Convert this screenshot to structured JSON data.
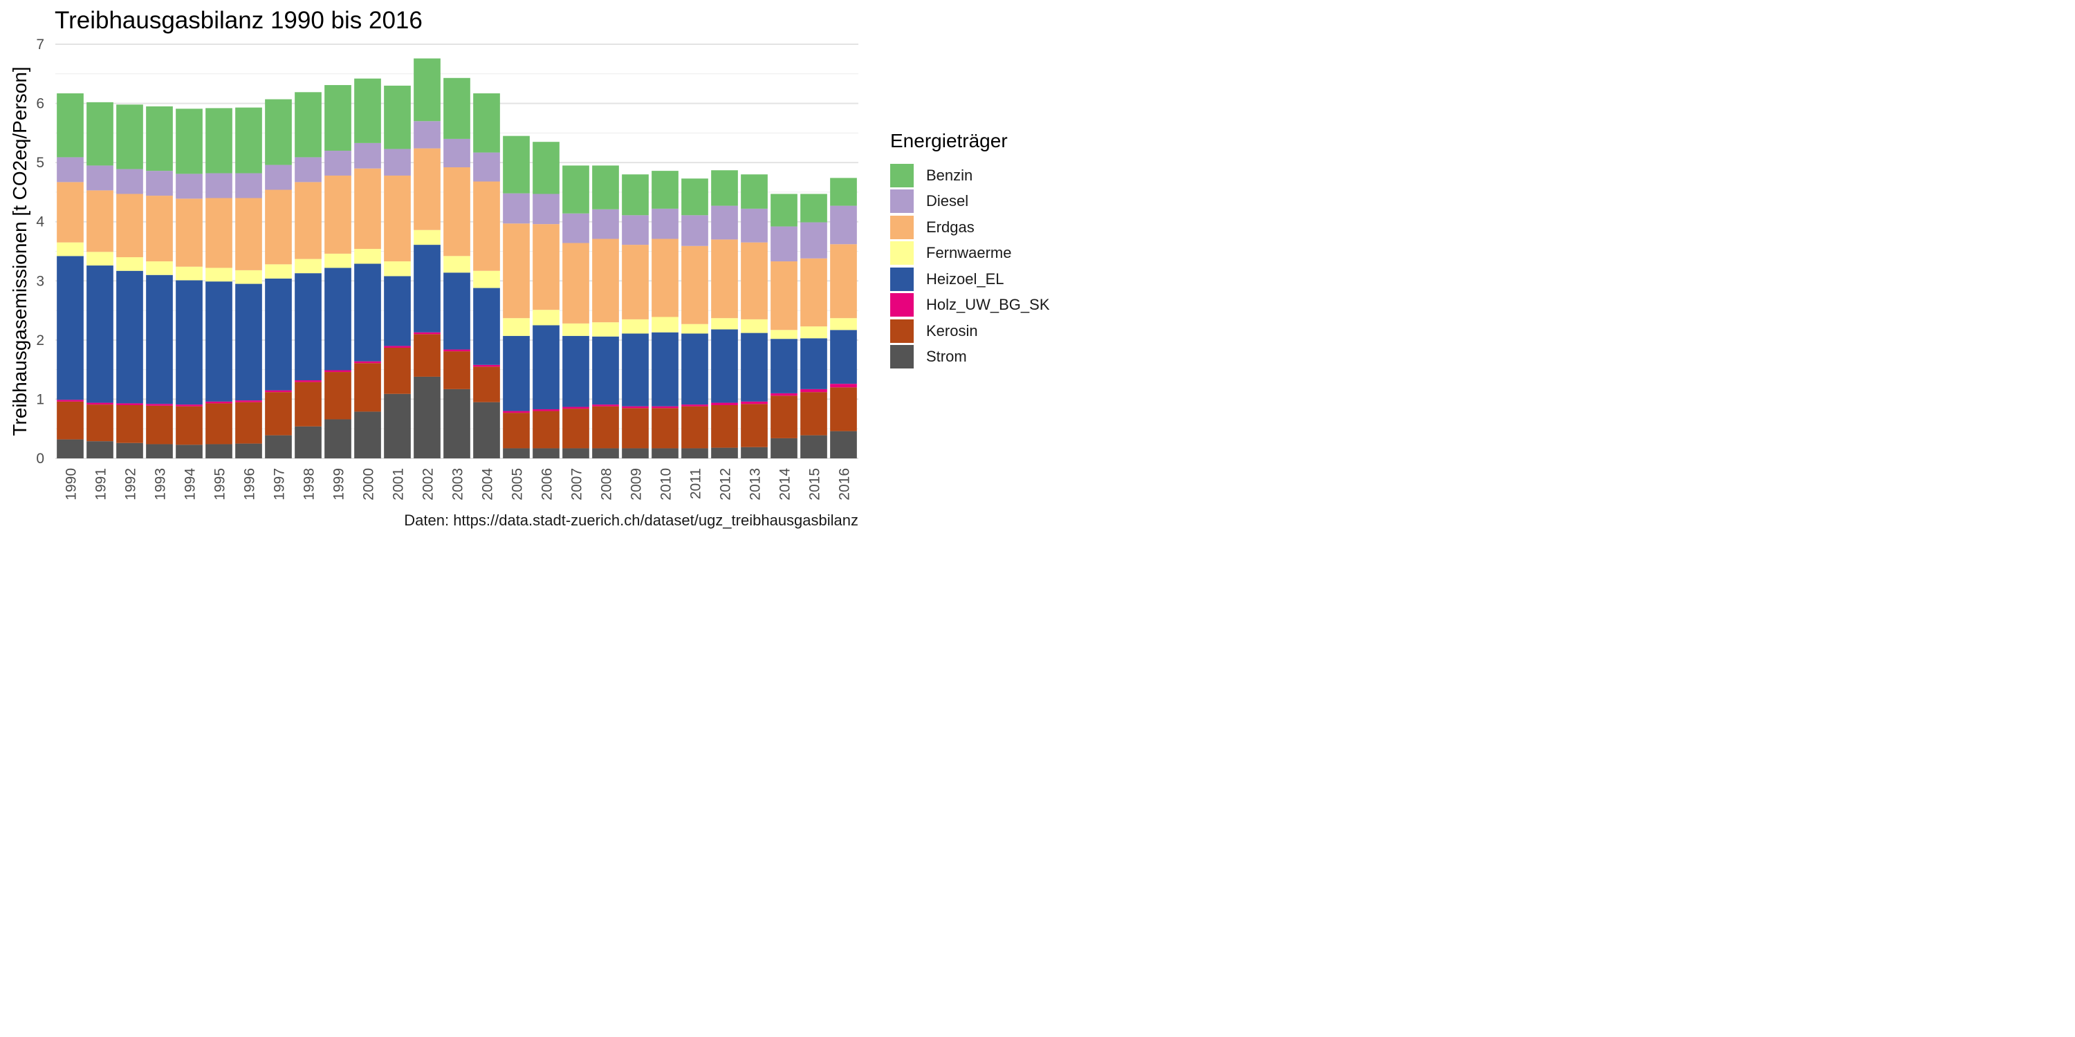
{
  "chart_data": {
    "type": "bar",
    "stacked": true,
    "title": "Treibhausgasbilanz 1990 bis 2016",
    "ylabel": "Treibhausgasemissionen [t CO2eq/Person]",
    "xlabel": "",
    "caption": "Daten: https://data.stadt-zuerich.ch/dataset/ugz_treibhausgasbilanz",
    "legend_title": "Energieträger",
    "legend_position": "right",
    "ylim": [
      0,
      7
    ],
    "yticks": [
      0,
      1,
      2,
      3,
      4,
      5,
      6,
      7
    ],
    "grid": true,
    "categories": [
      "1990",
      "1991",
      "1992",
      "1993",
      "1994",
      "1995",
      "1996",
      "1997",
      "1998",
      "1999",
      "2000",
      "2001",
      "2002",
      "2003",
      "2004",
      "2005",
      "2006",
      "2007",
      "2008",
      "2009",
      "2010",
      "2011",
      "2012",
      "2013",
      "2014",
      "2015",
      "2016"
    ],
    "series": [
      {
        "name": "Strom",
        "color": "#545454",
        "values": [
          0.32,
          0.29,
          0.26,
          0.24,
          0.23,
          0.24,
          0.25,
          0.39,
          0.54,
          0.66,
          0.79,
          1.09,
          1.38,
          1.17,
          0.95,
          0.17,
          0.17,
          0.17,
          0.17,
          0.17,
          0.17,
          0.17,
          0.18,
          0.19,
          0.34,
          0.39,
          0.46
        ]
      },
      {
        "name": "Kerosin",
        "color": "#b34715",
        "values": [
          0.64,
          0.62,
          0.64,
          0.65,
          0.65,
          0.69,
          0.7,
          0.73,
          0.75,
          0.8,
          0.82,
          0.78,
          0.72,
          0.64,
          0.6,
          0.6,
          0.63,
          0.67,
          0.71,
          0.68,
          0.68,
          0.71,
          0.72,
          0.73,
          0.72,
          0.73,
          0.74
        ]
      },
      {
        "name": "Holz_UW_BG_SK",
        "color": "#e7037d",
        "values": [
          0.03,
          0.03,
          0.03,
          0.03,
          0.03,
          0.03,
          0.03,
          0.03,
          0.03,
          0.03,
          0.03,
          0.03,
          0.03,
          0.03,
          0.03,
          0.03,
          0.03,
          0.03,
          0.03,
          0.03,
          0.03,
          0.03,
          0.04,
          0.04,
          0.04,
          0.05,
          0.06
        ]
      },
      {
        "name": "Heizoel_EL",
        "color": "#2c57a0",
        "values": [
          2.43,
          2.32,
          2.24,
          2.18,
          2.1,
          2.03,
          1.97,
          1.89,
          1.81,
          1.73,
          1.65,
          1.18,
          1.48,
          1.3,
          1.3,
          1.27,
          1.42,
          1.2,
          1.15,
          1.23,
          1.25,
          1.2,
          1.24,
          1.16,
          0.92,
          0.86,
          0.91
        ]
      },
      {
        "name": "Fernwaerme",
        "color": "#ffff93",
        "values": [
          0.23,
          0.23,
          0.23,
          0.23,
          0.23,
          0.23,
          0.23,
          0.24,
          0.24,
          0.24,
          0.25,
          0.25,
          0.25,
          0.28,
          0.29,
          0.3,
          0.26,
          0.21,
          0.24,
          0.24,
          0.26,
          0.16,
          0.19,
          0.23,
          0.15,
          0.2,
          0.2
        ]
      },
      {
        "name": "Erdgas",
        "color": "#f8b372",
        "values": [
          1.02,
          1.04,
          1.07,
          1.11,
          1.15,
          1.18,
          1.22,
          1.26,
          1.3,
          1.32,
          1.36,
          1.45,
          1.38,
          1.5,
          1.51,
          1.6,
          1.45,
          1.36,
          1.41,
          1.26,
          1.32,
          1.32,
          1.33,
          1.3,
          1.16,
          1.15,
          1.25
        ]
      },
      {
        "name": "Diesel",
        "color": "#af9ccc",
        "values": [
          0.42,
          0.42,
          0.42,
          0.42,
          0.42,
          0.42,
          0.42,
          0.42,
          0.42,
          0.42,
          0.43,
          0.45,
          0.46,
          0.48,
          0.49,
          0.51,
          0.51,
          0.5,
          0.5,
          0.5,
          0.51,
          0.52,
          0.57,
          0.57,
          0.59,
          0.61,
          0.65
        ]
      },
      {
        "name": "Benzin",
        "color": "#70c16b",
        "values": [
          1.08,
          1.07,
          1.09,
          1.09,
          1.1,
          1.1,
          1.11,
          1.11,
          1.1,
          1.11,
          1.09,
          1.07,
          1.06,
          1.03,
          1.0,
          0.97,
          0.88,
          0.81,
          0.74,
          0.69,
          0.64,
          0.62,
          0.6,
          0.58,
          0.55,
          0.48,
          0.47
        ]
      }
    ],
    "legend_order": [
      "Benzin",
      "Diesel",
      "Erdgas",
      "Fernwaerme",
      "Heizoel_EL",
      "Holz_UW_BG_SK",
      "Kerosin",
      "Strom"
    ]
  }
}
